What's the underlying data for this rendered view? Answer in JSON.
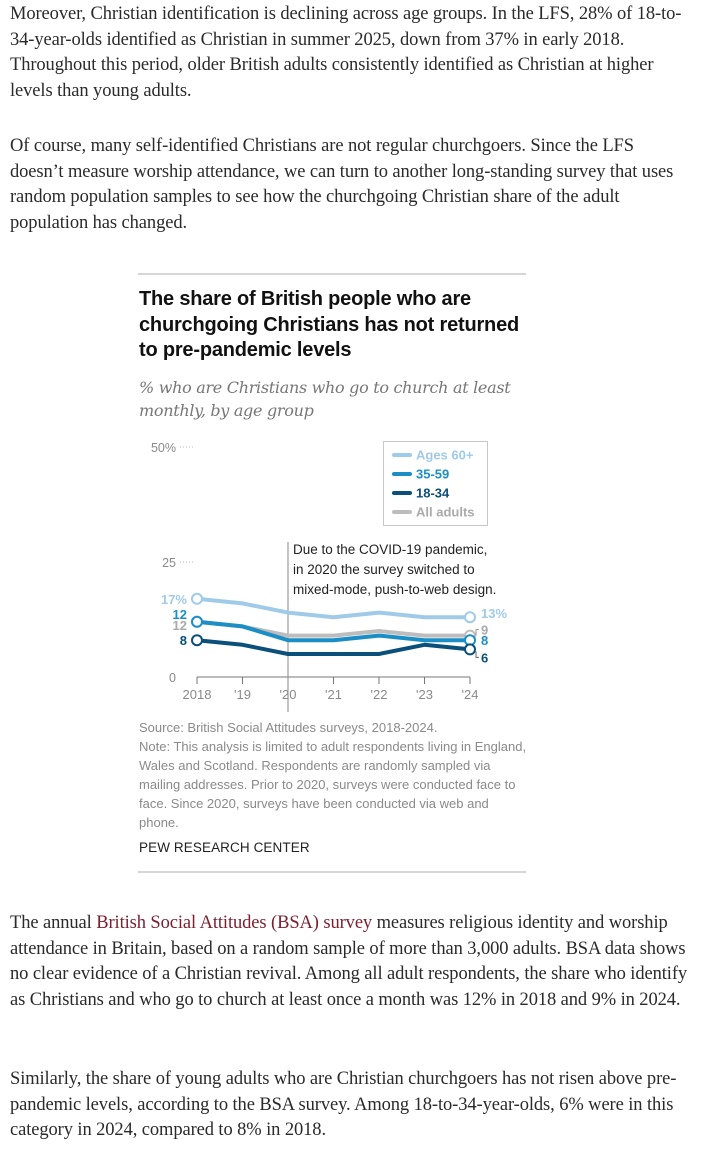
{
  "article": {
    "paragraph1": "Moreover, Christian identification is declining across age groups. In the LFS, 28% of 18-to-34-year-olds identified as Christian in summer 2025, down from 37% in early 2018. Throughout this period, older British adults consistently identified as Christian at higher levels than young adults.",
    "paragraph2": "Of course, many self-identified Christians are not regular churchgoers. Since the LFS doesn’t measure worship attendance, we can turn to another long-standing survey that uses random population samples to see how the churchgoing Christian share of the adult population has changed.",
    "paragraph3_before_link": "The annual ",
    "paragraph3_link": "British Social Attitudes (BSA) survey",
    "paragraph3_after_link": " measures religious identity and worship attendance in Britain, based on a random sample of more than 3,000 adults. BSA data shows no clear evidence of a Christian revival. Among all adult respondents, the share who identify as Christians and who go to church at least once a month was 12% in 2018 and 9% in 2024.",
    "paragraph4": "Similarly, the share of young adults who are Christian churchgoers has not risen above pre-pandemic levels, according to the BSA survey. Among 18-to-34-year-olds, 6% were in this category in 2024, compared to 8% in 2018.",
    "link_color": "#7a1e2e"
  },
  "chart_data": {
    "type": "line",
    "title": "The share of British people who are churchgoing Christians has not returned to pre-pandemic levels",
    "subtitle": "% who are Christians who go to church at least monthly, by age group",
    "x": [
      2018,
      2019,
      2020,
      2021,
      2022,
      2023,
      2024
    ],
    "x_tick_labels": [
      "2018",
      "'19",
      "'20",
      "'21",
      "'22",
      "'23",
      "'24"
    ],
    "y_ticks": [
      0,
      25,
      50
    ],
    "y_tick_labels": [
      "0",
      "25",
      "50%"
    ],
    "ylim": [
      0,
      50
    ],
    "grid": false,
    "legend_position": "top-right",
    "series": [
      {
        "name": "Ages 60+",
        "color": "#9fcbe8",
        "values": [
          17,
          16,
          14,
          13,
          14,
          13,
          13
        ],
        "start_label": "17%",
        "end_label": "13%"
      },
      {
        "name": "35-59",
        "color": "#1b8ec6",
        "values": [
          12,
          11,
          8,
          8,
          9,
          8,
          8
        ],
        "start_label": "12",
        "end_label": "8"
      },
      {
        "name": "18-34",
        "color": "#0b4f7b",
        "values": [
          8,
          7,
          5,
          5,
          5,
          7,
          6
        ],
        "start_label": "8",
        "end_label": "6"
      },
      {
        "name": "All adults",
        "color": "#bdbdbd",
        "values": [
          12,
          11,
          9,
          9,
          10,
          9,
          9
        ],
        "start_label": "12",
        "end_label": "9"
      }
    ],
    "annotation": {
      "x": 2020,
      "lines": [
        "Due to the COVID-19 pandemic,",
        "in 2020 the survey switched to",
        "mixed-mode, push-to-web design."
      ]
    },
    "source": "Source: British Social Attitudes surveys, 2018-2024.",
    "note": "Note: This analysis is limited to adult respondents living in England, Wales and Scotland. Respondents are randomly sampled via mailing addresses. Prior to 2020, surveys were conducted face to face. Since 2020, surveys have been conducted via web and phone.",
    "credit": "PEW RESEARCH CENTER"
  }
}
